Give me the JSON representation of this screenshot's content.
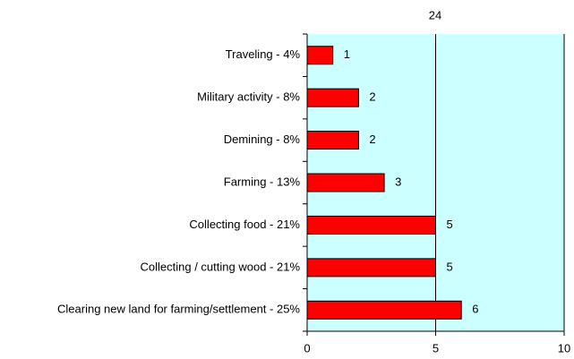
{
  "chart_data": {
    "type": "bar",
    "orientation": "horizontal",
    "title": "24",
    "categories": [
      "Traveling - 4%",
      "Military activity - 8%",
      "Demining - 8%",
      "Farming - 13%",
      "Collecting food - 21%",
      "Collecting / cutting wood - 21%",
      "Clearing new land for farming/settlement - 25%"
    ],
    "values": [
      1,
      2,
      2,
      3,
      5,
      5,
      6
    ],
    "color": "#ff0000",
    "xlim": [
      0,
      10
    ],
    "xticks": [
      0,
      5,
      10
    ],
    "grid": true
  }
}
